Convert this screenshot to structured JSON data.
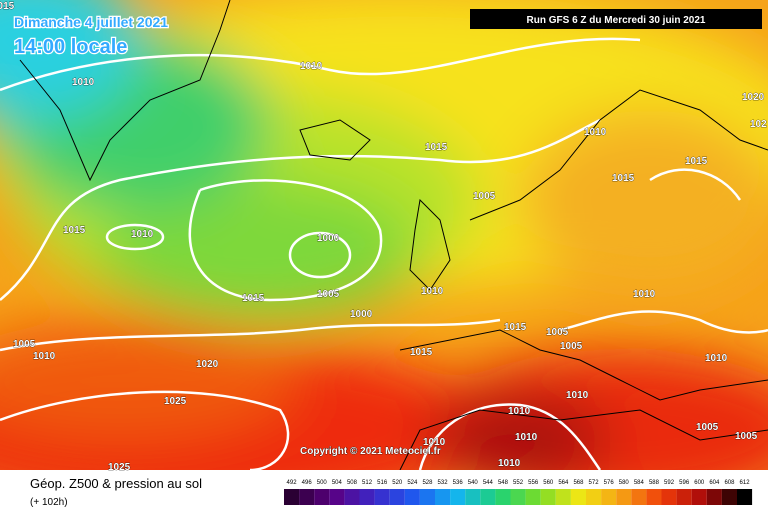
{
  "header": {
    "date": "Dimanche 4 juillet 2021",
    "time": "14:00 locale",
    "run": "Run GFS 6 Z du Mercredi 30 juin 2021"
  },
  "map": {
    "isobar_labels": [
      "1015",
      "1010",
      "1010",
      "1020",
      "102",
      "1010",
      "1015",
      "1015",
      "1015",
      "1005",
      "1015",
      "1010",
      "1000",
      "1015",
      "1005",
      "1010",
      "1010",
      "1000",
      "1015",
      "1005",
      "1005",
      "1005",
      "1010",
      "1015",
      "1010",
      "1020",
      "1010",
      "1025",
      "1010",
      "1005",
      "1010",
      "1010",
      "1005",
      "1010",
      "1025"
    ],
    "copyright": "Copyright © 2021 Meteociel.fr"
  },
  "footer": {
    "title": "Géop. Z500 & pression au sol",
    "lead": "(+ 102h)"
  },
  "scale": {
    "values": [
      492,
      496,
      500,
      504,
      508,
      512,
      516,
      520,
      524,
      528,
      532,
      536,
      540,
      544,
      548,
      552,
      556,
      560,
      564,
      568,
      572,
      576,
      580,
      584,
      588,
      592,
      596,
      600,
      604,
      608,
      612
    ]
  }
}
